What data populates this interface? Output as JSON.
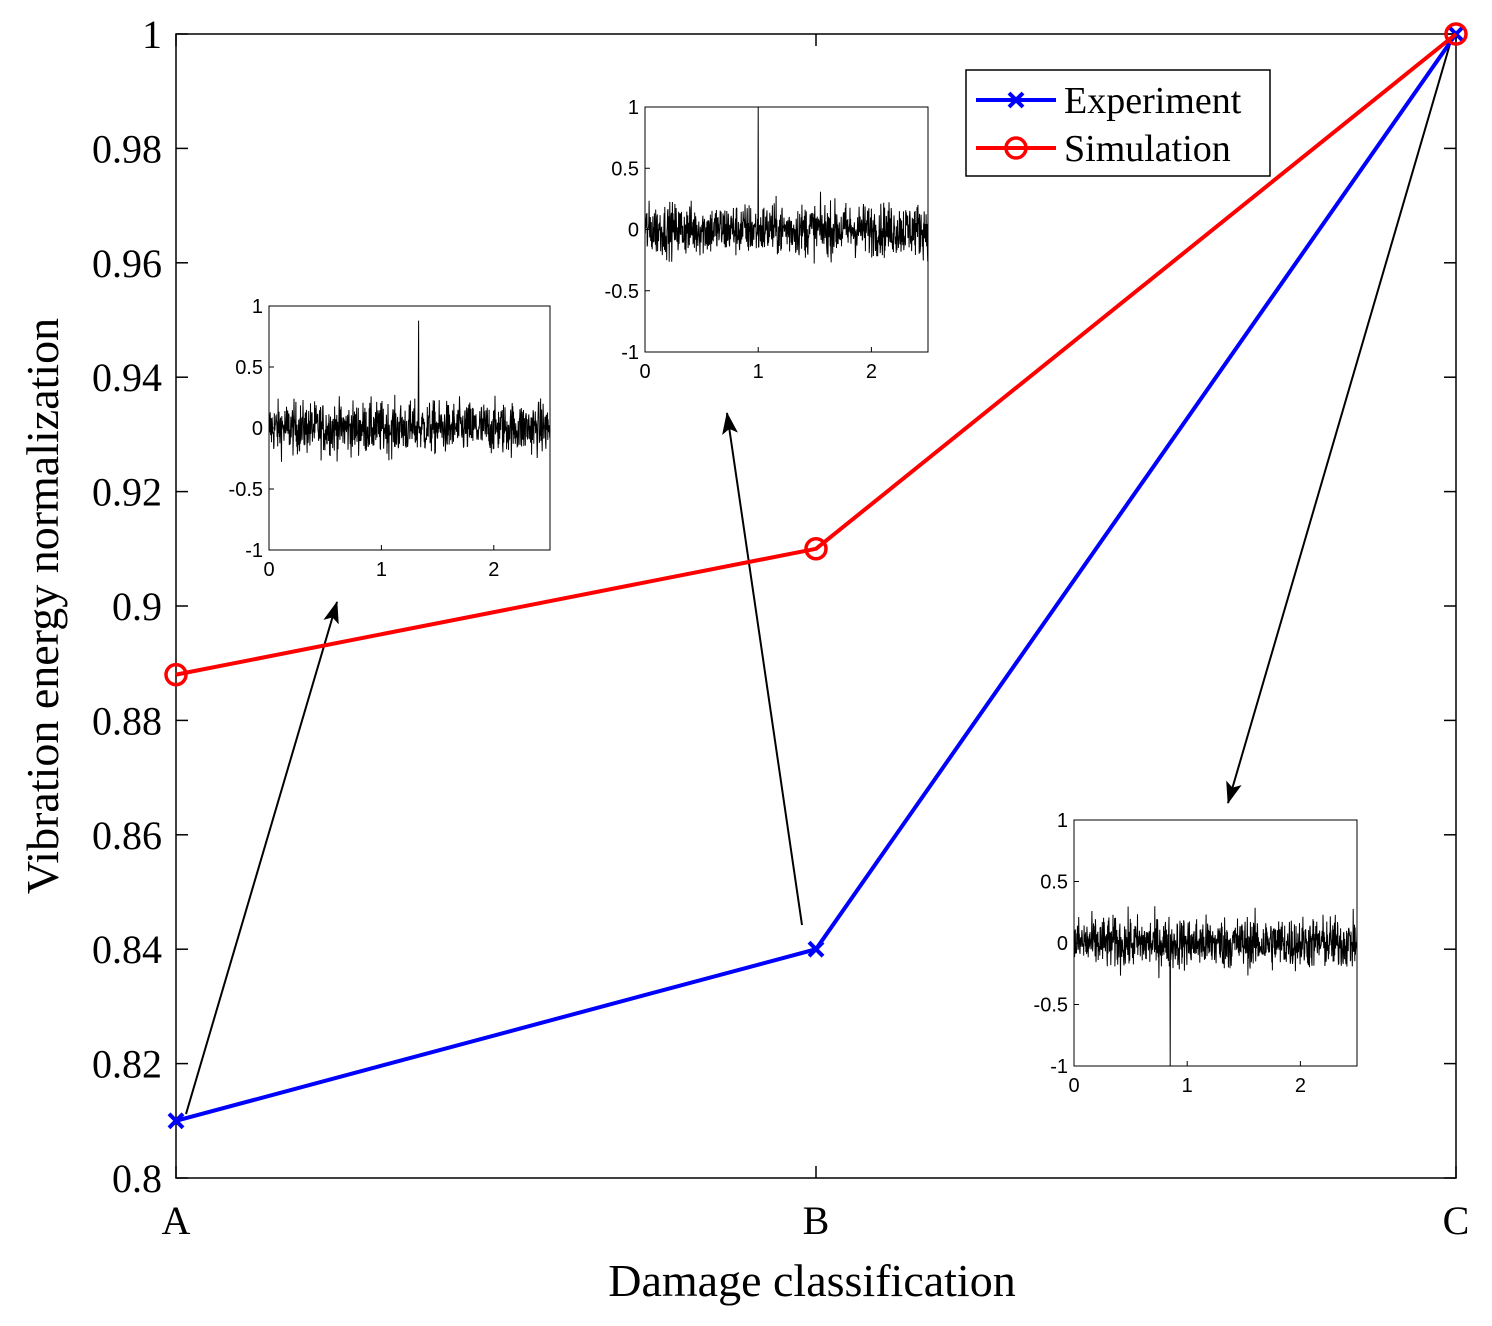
{
  "chart_data": {
    "type": "line",
    "xlabel": "Damage classification",
    "ylabel": "Vibration energy normalization",
    "categories": [
      "A",
      "B",
      "C"
    ],
    "ylim": [
      0.8,
      1.0
    ],
    "yticks": [
      "0.8",
      "0.82",
      "0.84",
      "0.86",
      "0.88",
      "0.9",
      "0.92",
      "0.94",
      "0.96",
      "0.98",
      "1"
    ],
    "series": [
      {
        "name": "Experiment",
        "color": "#0000ff",
        "marker": "x",
        "values": [
          0.81,
          0.84,
          1.0
        ]
      },
      {
        "name": "Simulation",
        "color": "#ff0000",
        "marker": "o",
        "values": [
          0.888,
          0.91,
          1.0
        ]
      }
    ],
    "legend": {
      "position": "top-right",
      "entries": [
        "Experiment",
        "Simulation"
      ]
    },
    "insets": [
      {
        "name": "signal-A",
        "type": "line",
        "xlim": [
          0,
          2.5
        ],
        "ylim": [
          -1,
          1
        ],
        "xticks": [
          "0",
          "1",
          "2"
        ],
        "yticks": [
          "1",
          "0.5",
          "0",
          "-0.5",
          "-1"
        ],
        "peak_time": 1.33,
        "peak_value": 0.88,
        "points_to": "A"
      },
      {
        "name": "signal-B",
        "type": "line",
        "xlim": [
          0,
          2.5
        ],
        "ylim": [
          -1,
          1
        ],
        "xticks": [
          "0",
          "1",
          "2"
        ],
        "yticks": [
          "1",
          "0.5",
          "0",
          "-0.5",
          "-1"
        ],
        "peak_time": 1.0,
        "peak_value": 1.0,
        "points_to": "B"
      },
      {
        "name": "signal-C",
        "type": "line",
        "xlim": [
          0,
          2.5
        ],
        "ylim": [
          -1,
          1
        ],
        "xticks": [
          "0",
          "1",
          "2"
        ],
        "yticks": [
          "1",
          "0.5",
          "0",
          "-0.5",
          "-1"
        ],
        "peak_time": 0.85,
        "peak_value": -1.0,
        "points_to": "C"
      }
    ]
  }
}
